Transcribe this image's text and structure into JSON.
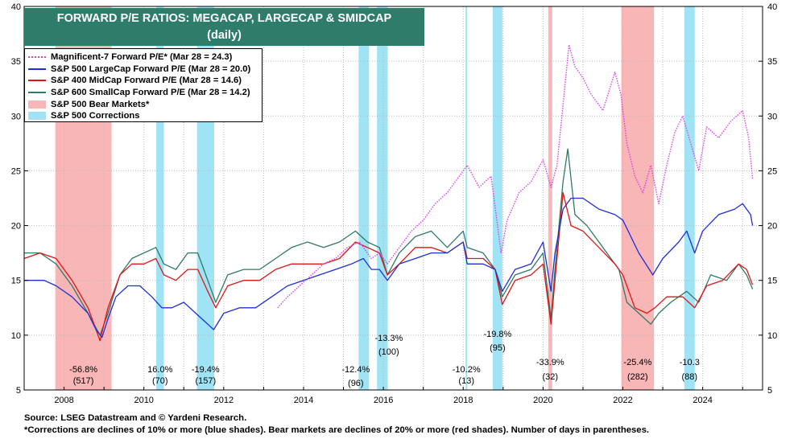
{
  "title": {
    "line1": "FORWARD P/E RATIOS: MEGACAP, LARGECAP & SMIDCAP",
    "line2": "(daily)"
  },
  "footnotes": {
    "source": "Source: LSEG Datastream and © Yardeni Research.",
    "note": "*Corrections are declines of 10% or more (blue shades). Bear markets are declines of 20% or more (red shades). Number of days in parentheses."
  },
  "colors": {
    "mag7": "#e040e8",
    "sp500": "#1f2fd6",
    "sp400": "#e01515",
    "sp600": "#2f7a66",
    "bear": "#f8b6b6",
    "correction": "#9fe3f5"
  },
  "chart_data": {
    "type": "line",
    "ylim": [
      5,
      40
    ],
    "yticks": [
      5,
      10,
      15,
      20,
      25,
      30,
      35,
      40
    ],
    "xlim": [
      2007.0,
      2025.5
    ],
    "xticks": [
      "2008",
      "2010",
      "2012",
      "2014",
      "2016",
      "2018",
      "2020",
      "2022",
      "2024"
    ],
    "grid": true,
    "legend_position": "top-left",
    "legend": [
      {
        "key": "mag7",
        "label": "Magnificent-7 Forward P/E* (Mar 28 = 24.3)",
        "style": "dotted"
      },
      {
        "key": "sp500",
        "label": "S&P 500 LargeCap Forward P/E (Mar 28 = 20.0)",
        "style": "solid"
      },
      {
        "key": "sp400",
        "label": "S&P 400 MidCap Forward P/E (Mar 28 = 14.6)",
        "style": "solid"
      },
      {
        "key": "sp600",
        "label": "S&P 600 SmallCap Forward P/E (Mar 28 = 14.2)",
        "style": "solid"
      },
      {
        "key": "bear",
        "label": "S&P 500 Bear Markets*",
        "style": "box"
      },
      {
        "key": "correction",
        "label": "S&P 500 Corrections",
        "style": "box"
      }
    ],
    "shaded_periods": [
      {
        "type": "bear",
        "start": 2007.78,
        "end": 2009.19,
        "pct": "-56.8%",
        "days": "(517)"
      },
      {
        "type": "correction",
        "start": 2010.31,
        "end": 2010.5,
        "pct": "16.0%",
        "days": "(70)"
      },
      {
        "type": "correction",
        "start": 2011.33,
        "end": 2011.76,
        "pct": "-19.4%",
        "days": "(157)"
      },
      {
        "type": "correction",
        "start": 2015.38,
        "end": 2015.64,
        "pct": "-12.4%",
        "days": "(96)"
      },
      {
        "type": "correction",
        "start": 2015.84,
        "end": 2016.11,
        "pct": "-13.3%",
        "days": "(100)"
      },
      {
        "type": "correction",
        "start": 2018.06,
        "end": 2018.1,
        "pct": "-10.2%",
        "days": "(13)"
      },
      {
        "type": "correction",
        "start": 2018.74,
        "end": 2018.98,
        "pct": "-19.8%",
        "days": "(95)"
      },
      {
        "type": "bear",
        "start": 2020.13,
        "end": 2020.23,
        "pct": "-33.9%",
        "days": "(32)"
      },
      {
        "type": "bear",
        "start": 2021.96,
        "end": 2022.78,
        "pct": "-25.4%",
        "days": "(282)"
      },
      {
        "type": "correction",
        "start": 2023.54,
        "end": 2023.8,
        "pct": "-10.3",
        "days": "(88)"
      }
    ],
    "series": [
      {
        "key": "mag7",
        "name": "Magnificent-7 Forward P/E*",
        "x": [
          2013.35,
          2013.6,
          2013.9,
          2014.2,
          2014.5,
          2014.8,
          2015.1,
          2015.4,
          2015.7,
          2015.9,
          2016.1,
          2016.4,
          2016.7,
          2017.0,
          2017.3,
          2017.6,
          2017.9,
          2018.1,
          2018.4,
          2018.7,
          2018.95,
          2019.1,
          2019.4,
          2019.7,
          2020.0,
          2020.2,
          2020.35,
          2020.5,
          2020.65,
          2020.8,
          2021.0,
          2021.2,
          2021.5,
          2021.8,
          2021.95,
          2022.1,
          2022.3,
          2022.5,
          2022.7,
          2022.9,
          2023.1,
          2023.3,
          2023.5,
          2023.7,
          2023.9,
          2024.1,
          2024.4,
          2024.7,
          2025.0,
          2025.15,
          2025.25
        ],
        "y": [
          12.5,
          13.5,
          14.5,
          15.5,
          16.5,
          17.0,
          18.0,
          18.5,
          17.0,
          17.5,
          16.5,
          18.0,
          19.5,
          20.5,
          22.0,
          23.0,
          24.5,
          25.5,
          23.5,
          24.5,
          17.5,
          20.5,
          23.0,
          24.0,
          26.0,
          23.5,
          25.5,
          31.0,
          36.5,
          34.5,
          33.5,
          32.0,
          30.5,
          34.0,
          32.0,
          27.5,
          24.5,
          23.0,
          25.5,
          22.0,
          25.5,
          28.5,
          30.0,
          27.5,
          25.0,
          29.0,
          28.0,
          29.5,
          30.5,
          28.0,
          24.3
        ]
      },
      {
        "key": "sp500",
        "name": "S&P 500 LargeCap Forward P/E",
        "x": [
          2007.0,
          2007.5,
          2007.8,
          2008.2,
          2008.6,
          2008.8,
          2008.95,
          2009.1,
          2009.3,
          2009.6,
          2009.9,
          2010.2,
          2010.45,
          2010.7,
          2011.0,
          2011.3,
          2011.6,
          2011.75,
          2012.0,
          2012.4,
          2012.8,
          2013.2,
          2013.6,
          2014.0,
          2014.4,
          2014.8,
          2015.2,
          2015.5,
          2015.7,
          2015.9,
          2016.1,
          2016.4,
          2016.8,
          2017.2,
          2017.6,
          2018.0,
          2018.1,
          2018.5,
          2018.8,
          2018.98,
          2019.3,
          2019.7,
          2020.0,
          2020.2,
          2020.3,
          2020.5,
          2020.7,
          2021.0,
          2021.4,
          2021.8,
          2022.0,
          2022.4,
          2022.75,
          2023.0,
          2023.4,
          2023.6,
          2023.8,
          2024.0,
          2024.4,
          2024.8,
          2025.0,
          2025.2,
          2025.25
        ],
        "y": [
          15.0,
          15.0,
          14.5,
          13.5,
          12.0,
          10.5,
          9.8,
          11.5,
          13.5,
          14.5,
          14.5,
          13.5,
          12.5,
          12.5,
          13.0,
          12.0,
          11.0,
          10.5,
          12.0,
          12.5,
          12.5,
          13.5,
          14.5,
          15.0,
          15.5,
          16.0,
          16.5,
          17.0,
          16.0,
          16.0,
          15.0,
          16.5,
          17.0,
          17.5,
          17.5,
          18.5,
          16.5,
          16.5,
          16.0,
          14.0,
          16.0,
          16.5,
          18.5,
          14.0,
          17.5,
          21.5,
          22.5,
          22.5,
          21.5,
          21.0,
          20.5,
          17.5,
          15.5,
          17.0,
          18.5,
          19.5,
          17.5,
          19.5,
          21.0,
          21.5,
          22.0,
          21.0,
          20.0
        ]
      },
      {
        "key": "sp400",
        "name": "S&P 400 MidCap Forward P/E",
        "x": [
          2007.0,
          2007.4,
          2007.8,
          2008.2,
          2008.6,
          2008.9,
          2009.1,
          2009.4,
          2009.7,
          2010.0,
          2010.3,
          2010.5,
          2010.8,
          2011.1,
          2011.35,
          2011.6,
          2011.8,
          2012.1,
          2012.5,
          2012.9,
          2013.3,
          2013.7,
          2014.1,
          2014.5,
          2014.9,
          2015.3,
          2015.6,
          2015.9,
          2016.1,
          2016.4,
          2016.8,
          2017.2,
          2017.6,
          2018.0,
          2018.1,
          2018.5,
          2018.8,
          2018.98,
          2019.3,
          2019.7,
          2020.0,
          2020.2,
          2020.3,
          2020.5,
          2020.7,
          2021.0,
          2021.4,
          2021.8,
          2022.0,
          2022.3,
          2022.6,
          2022.8,
          2023.1,
          2023.5,
          2023.8,
          2024.1,
          2024.5,
          2024.9,
          2025.1,
          2025.25
        ],
        "y": [
          17.0,
          17.5,
          17.0,
          15.0,
          12.5,
          9.5,
          12.5,
          15.5,
          16.5,
          16.5,
          17.0,
          15.5,
          15.0,
          16.0,
          16.0,
          14.0,
          12.5,
          14.5,
          15.0,
          15.0,
          16.0,
          16.5,
          16.5,
          16.5,
          17.0,
          18.5,
          18.0,
          17.5,
          15.5,
          16.5,
          18.0,
          18.0,
          17.5,
          18.5,
          17.0,
          17.0,
          16.0,
          12.8,
          15.0,
          15.5,
          16.5,
          11.0,
          15.0,
          23.0,
          20.0,
          19.5,
          18.0,
          16.5,
          15.5,
          12.5,
          12.0,
          12.5,
          13.5,
          13.5,
          12.5,
          14.5,
          15.0,
          16.5,
          16.0,
          14.6
        ]
      },
      {
        "key": "sp600",
        "name": "S&P 600 SmallCap Forward P/E",
        "x": [
          2007.0,
          2007.4,
          2007.8,
          2008.2,
          2008.6,
          2008.9,
          2009.1,
          2009.4,
          2009.7,
          2010.0,
          2010.3,
          2010.5,
          2010.8,
          2011.1,
          2011.35,
          2011.6,
          2011.8,
          2012.1,
          2012.5,
          2012.9,
          2013.3,
          2013.7,
          2014.1,
          2014.5,
          2014.9,
          2015.3,
          2015.6,
          2015.9,
          2016.1,
          2016.4,
          2016.8,
          2017.2,
          2017.6,
          2018.0,
          2018.1,
          2018.5,
          2018.8,
          2018.98,
          2019.3,
          2019.7,
          2020.0,
          2020.2,
          2020.3,
          2020.5,
          2020.62,
          2020.8,
          2021.1,
          2021.5,
          2021.9,
          2022.1,
          2022.4,
          2022.7,
          2022.9,
          2023.2,
          2023.6,
          2023.9,
          2024.2,
          2024.6,
          2024.9,
          2025.1,
          2025.25
        ],
        "y": [
          17.5,
          17.5,
          16.5,
          14.5,
          12.0,
          10.0,
          12.0,
          15.5,
          17.0,
          17.5,
          18.0,
          16.5,
          16.0,
          17.5,
          17.5,
          15.0,
          13.0,
          15.5,
          16.0,
          16.0,
          17.0,
          18.0,
          18.5,
          18.0,
          18.5,
          19.5,
          18.5,
          18.0,
          15.5,
          17.5,
          19.0,
          19.5,
          18.0,
          19.5,
          18.0,
          17.5,
          16.0,
          13.5,
          15.5,
          16.0,
          17.5,
          11.5,
          16.0,
          24.0,
          27.0,
          21.0,
          20.0,
          18.0,
          16.0,
          13.0,
          12.0,
          11.0,
          12.0,
          13.0,
          14.0,
          13.0,
          15.5,
          15.0,
          16.5,
          15.5,
          14.2
        ]
      }
    ]
  }
}
